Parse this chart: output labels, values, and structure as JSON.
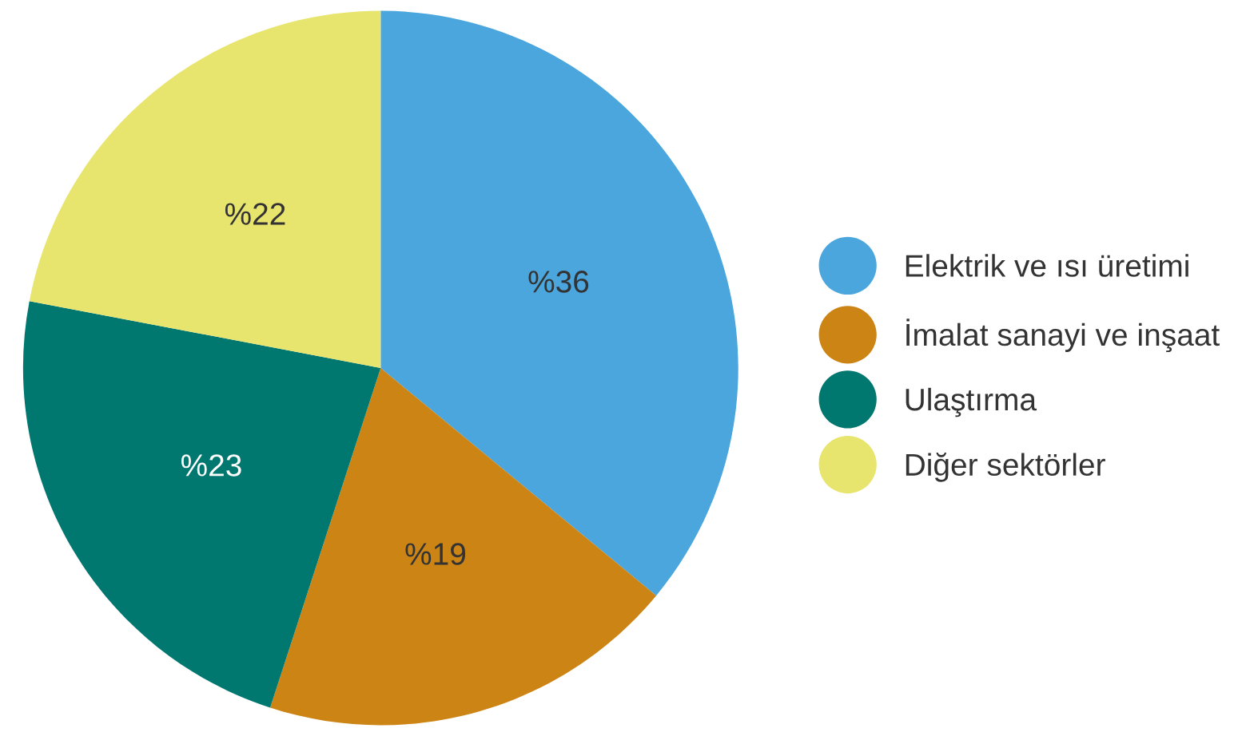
{
  "chart_data": {
    "type": "pie",
    "categories": [
      "Elektrik ve ısı üretimi",
      "İmalat sanayi ve inşaat",
      "Ulaştırma",
      "Diğer sektörler"
    ],
    "values": [
      36,
      19,
      23,
      22
    ],
    "colors": [
      "#4aa6dd",
      "#cc8414",
      "#00776f",
      "#e8e56e"
    ],
    "value_labels": [
      "%36",
      "%19",
      "%23",
      "%22"
    ],
    "legend": "right"
  }
}
